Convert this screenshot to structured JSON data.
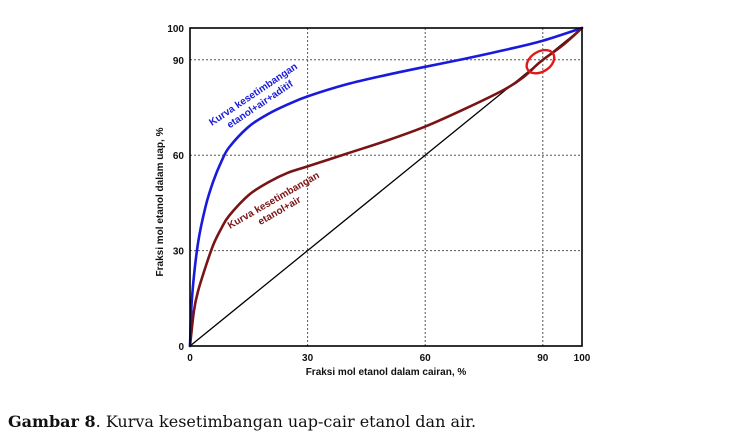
{
  "chart_data": {
    "type": "line",
    "xlabel": "Fraksi mol etanol dalam cairan, %",
    "ylabel": "Fraksi mol etanol dalam uap, %",
    "xlim": [
      0,
      100
    ],
    "ylim": [
      0,
      100
    ],
    "x_ticks": [
      0,
      30,
      60,
      90,
      100
    ],
    "y_ticks": [
      0,
      30,
      60,
      90,
      100
    ],
    "gridlines": [
      30,
      60,
      90
    ],
    "grid": "dotted",
    "series": [
      {
        "name": "Kurva kesetimbangan etanol+air+aditif",
        "color": "#1a1adc",
        "points": [
          [
            0,
            0
          ],
          [
            0.5,
            15
          ],
          [
            2,
            32
          ],
          [
            4,
            44
          ],
          [
            6,
            52
          ],
          [
            8,
            58
          ],
          [
            10,
            62.5
          ],
          [
            15,
            69
          ],
          [
            20,
            73
          ],
          [
            25,
            76
          ],
          [
            30,
            78.5
          ],
          [
            40,
            82.3
          ],
          [
            50,
            85.2
          ],
          [
            60,
            87.8
          ],
          [
            70,
            90.3
          ],
          [
            80,
            93
          ],
          [
            90,
            96
          ],
          [
            100,
            100
          ]
        ]
      },
      {
        "name": "Kurva kesetimbangan etanol+air",
        "color": "#7a1414",
        "points": [
          [
            0,
            0
          ],
          [
            1,
            11
          ],
          [
            2,
            17
          ],
          [
            4,
            25
          ],
          [
            6,
            32
          ],
          [
            8,
            37
          ],
          [
            10,
            41
          ],
          [
            15,
            47.5
          ],
          [
            20,
            51.5
          ],
          [
            25,
            54.5
          ],
          [
            30,
            56.5
          ],
          [
            40,
            60.5
          ],
          [
            50,
            64.5
          ],
          [
            60,
            69
          ],
          [
            70,
            74.5
          ],
          [
            80,
            80.5
          ],
          [
            85,
            84.5
          ],
          [
            89.4,
            89.4
          ],
          [
            95,
            94.5
          ],
          [
            100,
            100
          ]
        ]
      },
      {
        "name": "diagonal",
        "color": "#000000",
        "points": [
          [
            0,
            0
          ],
          [
            100,
            100
          ]
        ]
      }
    ],
    "annotations": [
      {
        "lines": [
          "Kurva kesetimbangan",
          "etanol+air+aditif"
        ],
        "color": "#1a1adc"
      },
      {
        "lines": [
          "Kurva kesetimbangan",
          "etanol+air"
        ],
        "color": "#7a1414"
      }
    ],
    "azeotrope_marker": {
      "x": 89.4,
      "y": 89.4,
      "shape": "ellipse",
      "color": "#e01818"
    }
  },
  "caption": {
    "label": "Gambar 8",
    "text": ". Kurva kesetimbangan uap-cair etanol dan air."
  }
}
